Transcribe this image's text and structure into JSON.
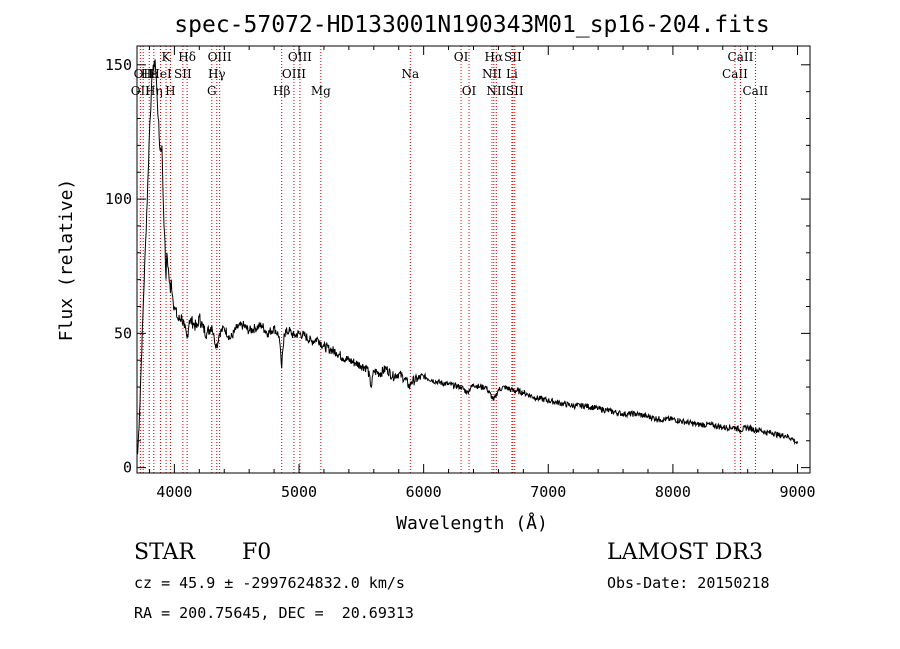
{
  "chart_data": {
    "type": "line",
    "title": "spec-57072-HD133001N190343M01_sp16-204.fits",
    "xlabel": "Wavelength (Å)",
    "ylabel": "Flux (relative)",
    "xlim": [
      3700,
      9100
    ],
    "ylim": [
      -2,
      157
    ],
    "x_ticks": [
      4000,
      5000,
      6000,
      7000,
      8000,
      9000
    ],
    "x_tick_labels": [
      "4000",
      "5000",
      "6000",
      "7000",
      "8000",
      "9000"
    ],
    "y_ticks": [
      0,
      50,
      100,
      150
    ],
    "y_tick_labels": [
      "0",
      "50",
      "100",
      "150"
    ],
    "grid": false,
    "line_color": "#000000",
    "marker_color": "#cc0000",
    "series": [
      {
        "x": [
          3705,
          3720,
          3735,
          3750,
          3770,
          3790,
          3800,
          3815,
          3830,
          3835,
          3845,
          3860,
          3870,
          3885,
          3900,
          3910,
          3920,
          3933,
          3940,
          3955,
          3968,
          3975,
          3990,
          4000,
          4030,
          4060,
          4080,
          4102,
          4120,
          4150,
          4180,
          4200,
          4230,
          4260,
          4300,
          4320,
          4340,
          4360,
          4400,
          4450,
          4500,
          4550,
          4600,
          4650,
          4700,
          4750,
          4800,
          4840,
          4861,
          4880,
          4920,
          4960,
          5000,
          5050,
          5100,
          5150,
          5200,
          5250,
          5300,
          5350,
          5400,
          5450,
          5500,
          5550,
          5580,
          5600,
          5650,
          5700,
          5750,
          5800,
          5850,
          5890,
          5900,
          5950,
          6000,
          6100,
          6200,
          6300,
          6350,
          6400,
          6450,
          6500,
          6563,
          6600,
          6650,
          6700,
          6800,
          6900,
          7000,
          7100,
          7200,
          7300,
          7400,
          7500,
          7600,
          7700,
          7800,
          7900,
          8000,
          8100,
          8200,
          8300,
          8400,
          8498,
          8542,
          8600,
          8662,
          8700,
          8750,
          8800,
          8850,
          8900,
          8950,
          9000
        ],
        "y": [
          5,
          20,
          40,
          60,
          85,
          110,
          125,
          140,
          150,
          148,
          152,
          140,
          130,
          118,
          120,
          100,
          88,
          70,
          80,
          72,
          65,
          70,
          62,
          60,
          55,
          56,
          52,
          48,
          55,
          54,
          52,
          56,
          52,
          50,
          53,
          48,
          45,
          50,
          52,
          48,
          52,
          53,
          51,
          52,
          53,
          50,
          52,
          49,
          37,
          50,
          51,
          49,
          50,
          49,
          47,
          48,
          45,
          44,
          43,
          41,
          40,
          39,
          38,
          37,
          30,
          36,
          35,
          37,
          34,
          35,
          33,
          30,
          32,
          33,
          34,
          32,
          31,
          30,
          28,
          31,
          30,
          30,
          25,
          29,
          30,
          29,
          28,
          26,
          25,
          24,
          23,
          23,
          22,
          21,
          20,
          20,
          19,
          18,
          18,
          17,
          16,
          16,
          15,
          15,
          14,
          15,
          14,
          14,
          13,
          13,
          12,
          12,
          11,
          9
        ]
      }
    ],
    "line_markers": [
      {
        "wl": 3727,
        "label": "OII",
        "row": 3
      },
      {
        "wl": 3750,
        "label": "OII",
        "row": 2
      },
      {
        "wl": 3798,
        "label": "Hε",
        "row": 2
      },
      {
        "wl": 3835,
        "label": "Hη",
        "row": 3
      },
      {
        "wl": 3889,
        "label": "HeI",
        "row": 2
      },
      {
        "wl": 3933,
        "label": "K",
        "row": 1
      },
      {
        "wl": 3968,
        "label": "H",
        "row": 3
      },
      {
        "wl": 4068,
        "label": "SII",
        "row": 2
      },
      {
        "wl": 4102,
        "label": "Hδ",
        "row": 1
      },
      {
        "wl": 4300,
        "label": "G",
        "row": 3
      },
      {
        "wl": 4340,
        "label": "Hγ",
        "row": 2
      },
      {
        "wl": 4363,
        "label": "OIII",
        "row": 1
      },
      {
        "wl": 4861,
        "label": "Hβ",
        "row": 3
      },
      {
        "wl": 4959,
        "label": "OIII",
        "row": 2
      },
      {
        "wl": 5007,
        "label": "OIII",
        "row": 1
      },
      {
        "wl": 5175,
        "label": "Mg",
        "row": 3
      },
      {
        "wl": 5893,
        "label": "Na",
        "row": 2
      },
      {
        "wl": 6300,
        "label": "OI",
        "row": 1
      },
      {
        "wl": 6364,
        "label": "OI",
        "row": 3
      },
      {
        "wl": 6548,
        "label": "NII",
        "row": 2
      },
      {
        "wl": 6563,
        "label": "Hα",
        "row": 1
      },
      {
        "wl": 6583,
        "label": "NII",
        "row": 3
      },
      {
        "wl": 6708,
        "label": "Li",
        "row": 2
      },
      {
        "wl": 6716,
        "label": "SII",
        "row": 1
      },
      {
        "wl": 6731,
        "label": "SII",
        "row": 3
      },
      {
        "wl": 8498,
        "label": "CaII",
        "row": 2
      },
      {
        "wl": 8542,
        "label": "CaII",
        "row": 1
      },
      {
        "wl": 8662,
        "label": "CaII",
        "row": 3
      }
    ]
  },
  "info": {
    "object_class": "STAR",
    "subclass": "F0",
    "survey": "LAMOST DR3",
    "redshift_line": "cz = 45.9 ± -2997624832.0 km/s",
    "obs_date_line": "Obs-Date: 20150218",
    "coords_line": "RA = 200.75645, DEC =  20.69313"
  }
}
